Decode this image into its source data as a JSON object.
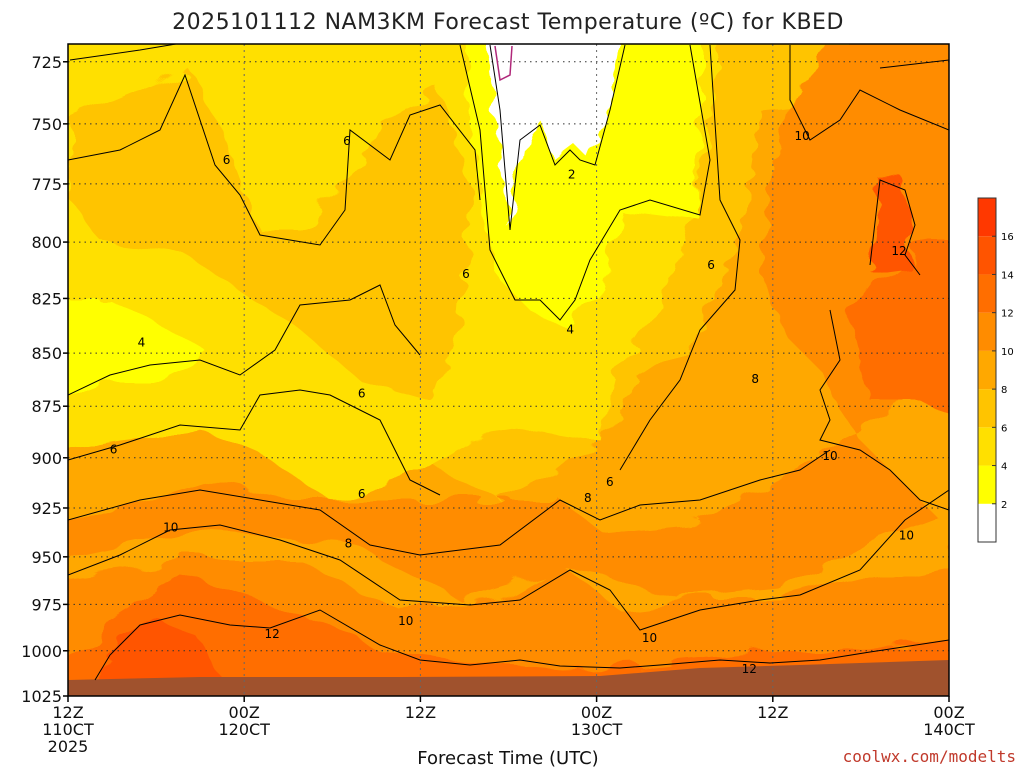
{
  "chart_data": {
    "type": "heatmap",
    "title": "2025101112 NAM3KM Forecast Temperature (ºC) for KBED",
    "xlabel": "Forecast Time (UTC)",
    "ylabel": "",
    "credit": "coolwx.com/modelts",
    "y_scale": "log-pressure",
    "y_ticks": [
      725,
      750,
      775,
      800,
      825,
      850,
      875,
      900,
      925,
      950,
      975,
      1000,
      1025
    ],
    "x_ticks": [
      {
        "hour": 0,
        "l1": "12Z",
        "l2": "110CT",
        "l3": "2025"
      },
      {
        "hour": 12,
        "l1": "00Z",
        "l2": "120CT",
        "l3": ""
      },
      {
        "hour": 24,
        "l1": "12Z",
        "l2": "",
        "l3": ""
      },
      {
        "hour": 36,
        "l1": "00Z",
        "l2": "130CT",
        "l3": ""
      },
      {
        "hour": 48,
        "l1": "12Z",
        "l2": "",
        "l3": ""
      },
      {
        "hour": 60,
        "l1": "00Z",
        "l2": "140CT",
        "l3": ""
      }
    ],
    "xlim_hours": [
      0,
      60
    ],
    "ylim_hpa": [
      1025,
      718
    ],
    "grid": true,
    "legend_position": "right",
    "colorbar": {
      "bounds": [
        0,
        2,
        4,
        6,
        8,
        10,
        12,
        14,
        16,
        18
      ],
      "labels": [
        2,
        4,
        6,
        8,
        10,
        12,
        14,
        16
      ],
      "colors": [
        "#ffffff",
        "#ffff00",
        "#ffe000",
        "#ffc400",
        "#ffa800",
        "#ff8c00",
        "#ff6e00",
        "#ff5400",
        "#ff3800"
      ]
    },
    "contour_labels": [
      {
        "h": 5.0,
        "p": 845,
        "v": "4"
      },
      {
        "h": 3.1,
        "p": 896,
        "v": "6"
      },
      {
        "h": 10.8,
        "p": 765,
        "v": "6"
      },
      {
        "h": 19.0,
        "p": 757,
        "v": "6"
      },
      {
        "h": 27.1,
        "p": 814,
        "v": "6"
      },
      {
        "h": 20.0,
        "p": 869,
        "v": "6"
      },
      {
        "h": 20.0,
        "p": 918,
        "v": "6"
      },
      {
        "h": 34.3,
        "p": 771,
        "v": "2"
      },
      {
        "h": 34.2,
        "p": 839,
        "v": "4"
      },
      {
        "h": 36.9,
        "p": 912,
        "v": "6"
      },
      {
        "h": 43.8,
        "p": 810,
        "v": "6"
      },
      {
        "h": 35.4,
        "p": 920,
        "v": "8"
      },
      {
        "h": 19.1,
        "p": 943,
        "v": "8"
      },
      {
        "h": 7.0,
        "p": 935,
        "v": "10"
      },
      {
        "h": 13.9,
        "p": 991,
        "v": "12"
      },
      {
        "h": 23.0,
        "p": 984,
        "v": "10"
      },
      {
        "h": 39.6,
        "p": 993,
        "v": "10"
      },
      {
        "h": 46.8,
        "p": 862,
        "v": "8"
      },
      {
        "h": 50.0,
        "p": 755,
        "v": "10"
      },
      {
        "h": 51.9,
        "p": 899,
        "v": "10"
      },
      {
        "h": 56.6,
        "p": 804,
        "v": "12"
      },
      {
        "h": 57.1,
        "p": 939,
        "v": "10"
      },
      {
        "h": 46.4,
        "p": 1010,
        "v": "12"
      }
    ]
  }
}
